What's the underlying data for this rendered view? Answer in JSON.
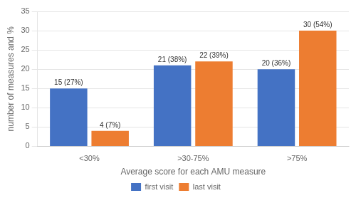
{
  "chart_data": {
    "type": "bar",
    "xlabel": "Average score for each AMU measure",
    "ylabel": "number of measures and %",
    "categories": [
      "<30%",
      ">30-75%",
      ">75%"
    ],
    "series": [
      {
        "name": "first visit",
        "color": "#4472C4",
        "values": [
          15,
          21,
          20
        ],
        "value_labels": [
          "15 (27%)",
          "21 (38%)",
          "20 (36%)"
        ]
      },
      {
        "name": "last visit",
        "color": "#ED7D31",
        "values": [
          4,
          22,
          30
        ],
        "value_labels": [
          "4 (7%)",
          "22 (39%)",
          "30 (54%)"
        ]
      }
    ],
    "ylim": [
      0,
      35
    ],
    "yticks": [
      0,
      5,
      10,
      15,
      20,
      25,
      30,
      35
    ],
    "grid": "y",
    "legend": "bottom",
    "data_labels": true
  }
}
